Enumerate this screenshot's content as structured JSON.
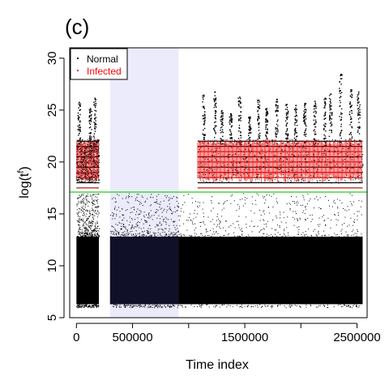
{
  "chart_data": {
    "type": "scatter",
    "panel_label": "(c)",
    "xlabel": "Time index",
    "ylabel": "log(t",
    "ylabel_superscript": "f",
    "ylabel_close": ")",
    "xlim": [
      -60000,
      2590000
    ],
    "ylim": [
      5,
      31
    ],
    "x_ticks": [
      0,
      500000,
      1000000,
      1500000,
      2000000,
      2500000
    ],
    "x_tick_labels": [
      "0",
      "500000",
      "",
      "1500000",
      "",
      "2500000"
    ],
    "y_ticks": [
      5,
      10,
      15,
      20,
      25,
      30
    ],
    "y_tick_labels": [
      "5",
      "10",
      "15",
      "20",
      "25",
      "30"
    ],
    "threshold": {
      "y": 17.1,
      "color": "#22cc22"
    },
    "shaded_region": {
      "x_start": 300000,
      "x_end": 910000,
      "color": "#ebebfb"
    },
    "data_segments": [
      {
        "x_start": 0,
        "x_end": 200000
      },
      {
        "x_start": 300000,
        "x_end": 910000
      },
      {
        "x_start": 910000,
        "x_end": 2550000
      }
    ],
    "legend": {
      "position": "top-left",
      "entries": [
        {
          "label": "Normal",
          "color": "#000000"
        },
        {
          "label": "Infected",
          "color": "#ff0000"
        }
      ]
    },
    "series": [
      {
        "name": "Normal",
        "color": "#000000",
        "dense_band": [
          6.3,
          12.8
        ],
        "sparse_range": [
          12.8,
          17.0
        ],
        "above_threshold_levels": [
          17.5,
          18.0,
          18.5,
          19.0,
          19.5,
          20.0,
          20.5,
          21.0,
          21.5,
          22.0
        ],
        "spike_peaks": [
          {
            "x": 20000,
            "y": 25.8
          },
          {
            "x": 120000,
            "y": 25.2
          },
          {
            "x": 160000,
            "y": 26.2
          },
          {
            "x": 1130000,
            "y": 26.5
          },
          {
            "x": 1230000,
            "y": 26.8
          },
          {
            "x": 1290000,
            "y": 25.0
          },
          {
            "x": 1370000,
            "y": 24.7
          },
          {
            "x": 1450000,
            "y": 26.3
          },
          {
            "x": 1540000,
            "y": 24.4
          },
          {
            "x": 1620000,
            "y": 26.0
          },
          {
            "x": 1690000,
            "y": 25.2
          },
          {
            "x": 1780000,
            "y": 26.1
          },
          {
            "x": 1870000,
            "y": 25.6
          },
          {
            "x": 1950000,
            "y": 25.5
          },
          {
            "x": 2030000,
            "y": 25.7
          },
          {
            "x": 2120000,
            "y": 25.9
          },
          {
            "x": 2210000,
            "y": 26.2
          },
          {
            "x": 2260000,
            "y": 26.6
          },
          {
            "x": 2350000,
            "y": 28.5
          },
          {
            "x": 2440000,
            "y": 27.0
          },
          {
            "x": 2510000,
            "y": 26.8
          }
        ]
      },
      {
        "name": "Infected",
        "color": "#ff0000",
        "x_ranges": [
          [
            0,
            200000
          ],
          [
            1080000,
            2550000
          ]
        ],
        "band": [
          18.0,
          22.2
        ],
        "levels": [
          17.5,
          18.5,
          19.0,
          20.0,
          21.0
        ]
      }
    ]
  }
}
